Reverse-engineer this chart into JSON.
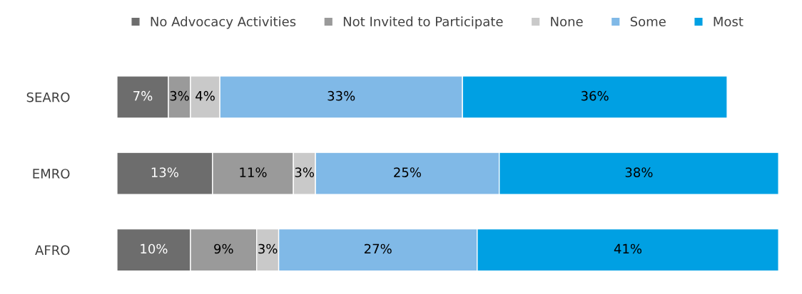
{
  "chart_data": {
    "type": "bar",
    "orientation": "horizontal",
    "stacked": true,
    "legend": "top",
    "categories": [
      "SEARO",
      "EMRO",
      "AFRO"
    ],
    "series": [
      {
        "name": "No Advocacy Activities",
        "color": "#6d6d6d",
        "values": [
          7,
          13,
          10
        ],
        "value_labels": [
          "7%",
          "13%",
          "10%"
        ]
      },
      {
        "name": "Not Invited to Participate",
        "color": "#9a9a9a",
        "values": [
          3,
          11,
          9
        ],
        "value_labels": [
          "3%",
          "11%",
          "9%"
        ]
      },
      {
        "name": "None",
        "color": "#c9c9c9",
        "values": [
          4,
          3,
          3
        ],
        "value_labels": [
          "4%",
          "3%",
          "3%"
        ]
      },
      {
        "name": "Some",
        "color": "#80b9e7",
        "values": [
          33,
          25,
          27
        ],
        "value_labels": [
          "33%",
          "25%",
          "27%"
        ]
      },
      {
        "name": "Most",
        "color": "#00a0e3",
        "values": [
          36,
          38,
          41
        ],
        "value_labels": [
          "36%",
          "38%",
          "41%"
        ]
      }
    ]
  }
}
